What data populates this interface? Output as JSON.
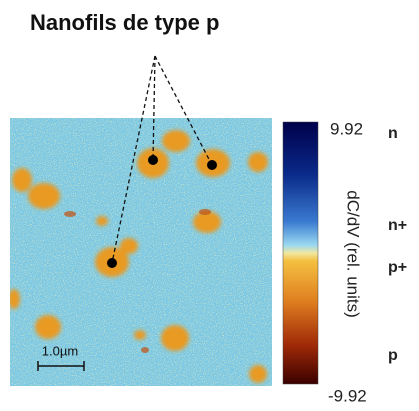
{
  "title": "Nanofils de type p",
  "colorbar": {
    "max": "9.92",
    "min": "-9.92",
    "label": "dC/dV (rel. units)",
    "levels": [
      "n",
      "n+",
      "p+",
      "p"
    ]
  },
  "scale_bar": "1.0µm"
}
